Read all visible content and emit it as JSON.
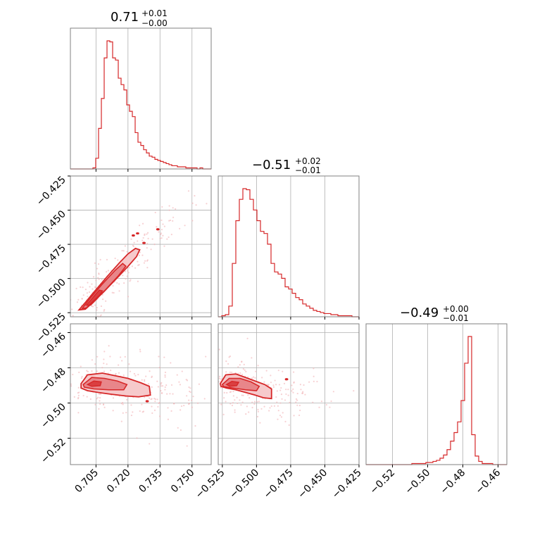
{
  "colors": {
    "main": "#d62728",
    "fill_dark": "#e8868a",
    "fill_light": "#f6c9cb",
    "scatter": "#f2b3b5"
  },
  "chart_data": {
    "type": "corner",
    "parameters": [
      {
        "title": {
          "main": "0.71",
          "upper": "+0.01",
          "lower": "−0.00"
        },
        "range": [
          0.693,
          0.759
        ],
        "ticks": [
          0.705,
          0.72,
          0.735,
          0.75
        ],
        "tick_labels": [
          "0.705",
          "0.720",
          "0.735",
          "0.750"
        ],
        "histogram": {
          "edges": [
            0.693,
            0.759
          ],
          "counts": [
            0,
            0,
            0,
            0,
            0,
            0,
            0,
            0,
            1,
            10,
            38,
            66,
            104,
            120,
            119,
            104,
            102,
            85,
            79,
            74,
            60,
            54,
            49,
            34,
            25,
            22,
            18,
            15,
            12,
            11,
            9,
            8,
            7,
            6,
            5,
            4,
            3,
            3,
            2,
            2,
            2,
            1,
            1,
            1,
            1,
            0,
            1,
            0,
            0,
            0
          ]
        }
      },
      {
        "title": {
          "main": "−0.51",
          "upper": "+0.02",
          "lower": "−0.01"
        },
        "range": [
          -0.528,
          -0.425
        ],
        "ticks": [
          -0.525,
          -0.5,
          -0.475,
          -0.45,
          -0.425
        ],
        "tick_labels": [
          "−0.525",
          "−0.500",
          "−0.475",
          "−0.450",
          "−0.425"
        ],
        "histogram": {
          "edges": [
            -0.528,
            -0.425
          ],
          "counts": [
            0,
            1,
            2,
            10,
            50,
            90,
            110,
            120,
            119,
            110,
            100,
            90,
            80,
            78,
            68,
            50,
            42,
            40,
            36,
            28,
            26,
            22,
            18,
            16,
            12,
            10,
            8,
            6,
            5,
            4,
            3,
            3,
            2,
            2,
            1,
            1,
            1,
            1,
            0,
            0
          ]
        }
      },
      {
        "title": {
          "main": "−0.49",
          "upper": "+0.00",
          "lower": "−0.01"
        },
        "range": [
          -0.535,
          -0.455
        ],
        "ticks": [
          -0.52,
          -0.5,
          -0.48,
          -0.46
        ],
        "tick_labels": [
          "−0.52",
          "−0.50",
          "−0.48",
          "−0.46"
        ],
        "histogram": {
          "edges": [
            -0.535,
            -0.455
          ],
          "counts": [
            0,
            0,
            0,
            0,
            0,
            0,
            0,
            0,
            0,
            0,
            0,
            0,
            0,
            1,
            1,
            1,
            1,
            2,
            2,
            3,
            4,
            6,
            9,
            14,
            22,
            30,
            40,
            60,
            95,
            120,
            28,
            8,
            3,
            1,
            1,
            1,
            0,
            0,
            0,
            0
          ]
        }
      }
    ],
    "contours": {
      "1_0": {
        "outer": [
          [
            0.697,
            -0.523
          ],
          [
            0.6995,
            -0.5185
          ],
          [
            0.704,
            -0.51
          ],
          [
            0.71,
            -0.499
          ],
          [
            0.716,
            -0.4885
          ],
          [
            0.72,
            -0.482
          ],
          [
            0.7235,
            -0.478
          ],
          [
            0.7255,
            -0.479
          ],
          [
            0.724,
            -0.484
          ],
          [
            0.7195,
            -0.492
          ],
          [
            0.714,
            -0.501
          ],
          [
            0.7085,
            -0.51
          ],
          [
            0.7035,
            -0.5175
          ],
          [
            0.7,
            -0.5225
          ]
        ],
        "middle": [
          [
            0.6985,
            -0.522
          ],
          [
            0.702,
            -0.515
          ],
          [
            0.708,
            -0.504
          ],
          [
            0.714,
            -0.494
          ],
          [
            0.7175,
            -0.489
          ],
          [
            0.719,
            -0.491
          ],
          [
            0.7155,
            -0.498
          ],
          [
            0.709,
            -0.509
          ],
          [
            0.7035,
            -0.517
          ],
          [
            0.7005,
            -0.5215
          ]
        ],
        "inner": [
          [
            0.7005,
            -0.5195
          ],
          [
            0.704,
            -0.513
          ],
          [
            0.7065,
            -0.5085
          ],
          [
            0.708,
            -0.509
          ],
          [
            0.706,
            -0.514
          ],
          [
            0.7025,
            -0.5195
          ]
        ],
        "islands": [
          [
            0.7225,
            -0.4685
          ],
          [
            0.7245,
            -0.467
          ],
          [
            0.734,
            -0.464
          ],
          [
            0.7275,
            -0.474
          ]
        ]
      },
      "2_0": {
        "outer": [
          [
            0.698,
            -0.489
          ],
          [
            0.701,
            -0.484
          ],
          [
            0.708,
            -0.483
          ],
          [
            0.714,
            -0.4845
          ],
          [
            0.72,
            -0.486
          ],
          [
            0.726,
            -0.4885
          ],
          [
            0.73,
            -0.4905
          ],
          [
            0.7305,
            -0.4955
          ],
          [
            0.725,
            -0.4965
          ],
          [
            0.719,
            -0.496
          ],
          [
            0.712,
            -0.495
          ],
          [
            0.706,
            -0.494
          ],
          [
            0.701,
            -0.493
          ],
          [
            0.698,
            -0.4915
          ]
        ],
        "middle": [
          [
            0.699,
            -0.4895
          ],
          [
            0.703,
            -0.4855
          ],
          [
            0.709,
            -0.486
          ],
          [
            0.715,
            -0.4875
          ],
          [
            0.7195,
            -0.4895
          ],
          [
            0.718,
            -0.4925
          ],
          [
            0.711,
            -0.4925
          ],
          [
            0.704,
            -0.492
          ],
          [
            0.6995,
            -0.491
          ]
        ],
        "inner": [
          [
            0.701,
            -0.4895
          ],
          [
            0.704,
            -0.4875
          ],
          [
            0.7075,
            -0.488
          ],
          [
            0.707,
            -0.4902
          ],
          [
            0.703,
            -0.4905
          ]
        ],
        "islands": [
          [
            0.729,
            -0.499
          ]
        ]
      },
      "2_1": {
        "outer": [
          [
            -0.5265,
            -0.489
          ],
          [
            -0.5225,
            -0.484
          ],
          [
            -0.515,
            -0.4835
          ],
          [
            -0.508,
            -0.4855
          ],
          [
            -0.501,
            -0.4875
          ],
          [
            -0.494,
            -0.4895
          ],
          [
            -0.489,
            -0.492
          ],
          [
            -0.489,
            -0.4975
          ],
          [
            -0.495,
            -0.497
          ],
          [
            -0.501,
            -0.4955
          ],
          [
            -0.508,
            -0.494
          ],
          [
            -0.515,
            -0.4925
          ],
          [
            -0.522,
            -0.4915
          ],
          [
            -0.526,
            -0.4905
          ]
        ],
        "middle": [
          [
            -0.525,
            -0.4895
          ],
          [
            -0.52,
            -0.486
          ],
          [
            -0.512,
            -0.486
          ],
          [
            -0.504,
            -0.488
          ],
          [
            -0.498,
            -0.4905
          ],
          [
            -0.5,
            -0.493
          ],
          [
            -0.508,
            -0.4925
          ],
          [
            -0.517,
            -0.4915
          ],
          [
            -0.524,
            -0.4907
          ]
        ],
        "inner": [
          [
            -0.522,
            -0.4895
          ],
          [
            -0.518,
            -0.4877
          ],
          [
            -0.513,
            -0.4882
          ],
          [
            -0.5145,
            -0.4902
          ],
          [
            -0.5195,
            -0.4905
          ]
        ],
        "islands": [
          [
            -0.478,
            -0.4865
          ]
        ]
      }
    }
  }
}
